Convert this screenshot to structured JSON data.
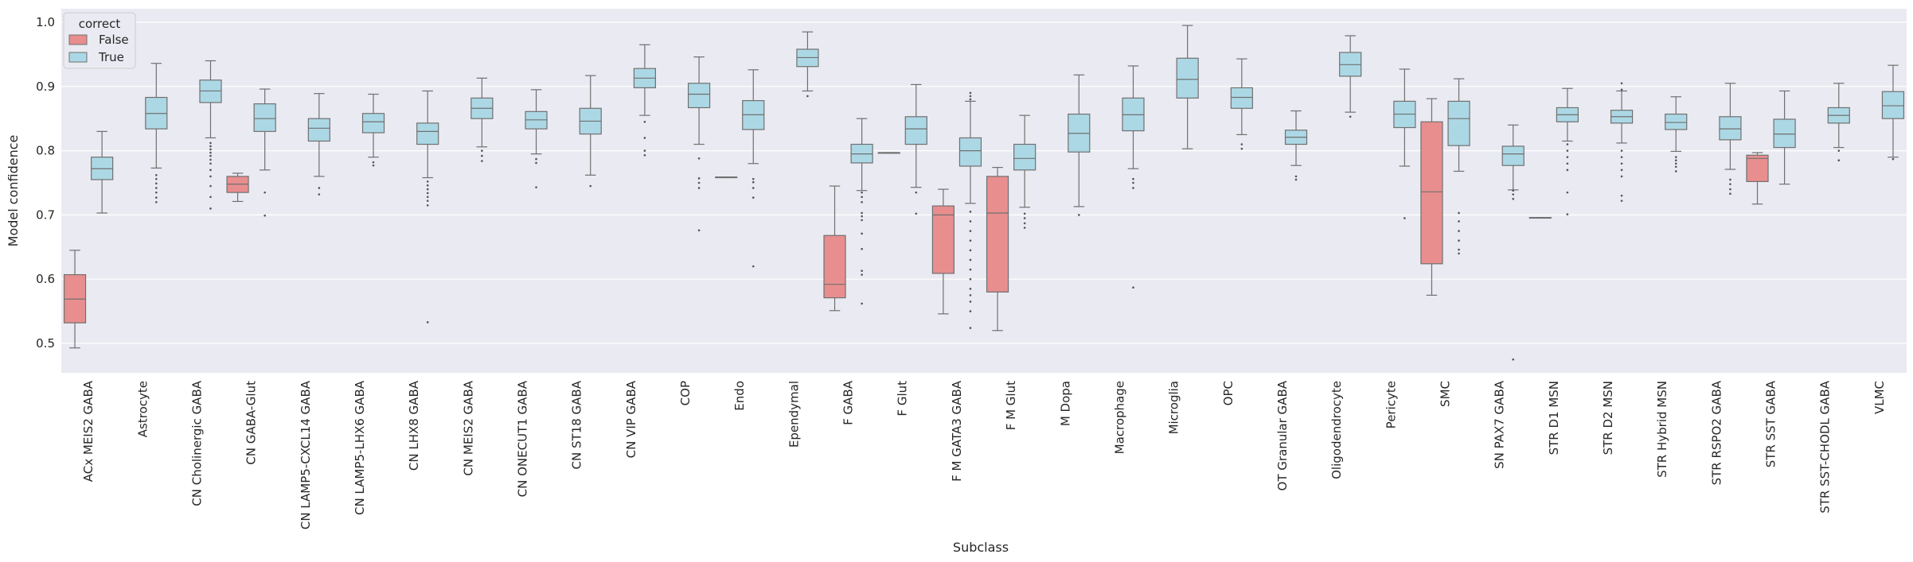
{
  "chart_data": {
    "type": "box",
    "xlabel": "Subclass",
    "ylabel": "Model confidence",
    "ylim": [
      0.45,
      1.02
    ],
    "yticks": [
      0.5,
      0.6,
      0.7,
      0.8,
      0.9,
      1.0
    ],
    "grid": true,
    "legend": {
      "title": "correct",
      "position": "top-left",
      "entries": [
        {
          "label": "False",
          "color": "#e88e8e"
        },
        {
          "label": "True",
          "color": "#acd8e5"
        }
      ]
    },
    "colors": {
      "False": "#e88e8e",
      "True": "#acd8e5",
      "background": "#eaeaf2",
      "grid": "#ffffff",
      "line": "#707070"
    },
    "categories": [
      "ACx MEIS2 GABA",
      "Astrocyte",
      "CN Cholinergic GABA",
      "CN GABA-Glut",
      "CN LAMP5-CXCL14 GABA",
      "CN LAMP5-LHX6 GABA",
      "CN LHX8 GABA",
      "CN MEIS2 GABA",
      "CN ONECUT1 GABA",
      "CN ST18 GABA",
      "CN VIP GABA",
      "COP",
      "Endo",
      "Ependymal",
      "F GABA",
      "F Glut",
      "F M GATA3 GABA",
      "F M Glut",
      "M Dopa",
      "Macrophage",
      "Microglia",
      "OPC",
      "OT Granular GABA",
      "Oligodendrocyte",
      "Pericyte",
      "SMC",
      "SN PAX7 GABA",
      "STR D1 MSN",
      "STR D2 MSN",
      "STR Hybrid MSN",
      "STR RSPO2 GABA",
      "STR SST GABA",
      "STR SST-CHODL GABA",
      "VLMC"
    ],
    "series": [
      {
        "name": "False",
        "boxes": [
          {
            "category": "ACx MEIS2 GABA",
            "whislo": 0.493,
            "q1": 0.532,
            "median": 0.569,
            "q3": 0.607,
            "whishi": 0.645,
            "fliers": []
          },
          {
            "category": "CN GABA-Glut",
            "whislo": 0.721,
            "q1": 0.735,
            "median": 0.748,
            "q3": 0.76,
            "whishi": 0.765,
            "fliers": []
          },
          {
            "category": "Endo",
            "whislo": 0.759,
            "q1": 0.759,
            "median": 0.759,
            "q3": 0.759,
            "whishi": 0.759,
            "fliers": []
          },
          {
            "category": "F GABA",
            "whislo": 0.551,
            "q1": 0.571,
            "median": 0.592,
            "q3": 0.668,
            "whishi": 0.745,
            "fliers": []
          },
          {
            "category": "F Glut",
            "whislo": 0.797,
            "q1": 0.797,
            "median": 0.797,
            "q3": 0.797,
            "whishi": 0.797,
            "fliers": []
          },
          {
            "category": "F M GATA3 GABA",
            "whislo": 0.546,
            "q1": 0.609,
            "median": 0.7,
            "q3": 0.714,
            "whishi": 0.74,
            "fliers": []
          },
          {
            "category": "F M Glut",
            "whislo": 0.52,
            "q1": 0.58,
            "median": 0.703,
            "q3": 0.76,
            "whishi": 0.774,
            "fliers": []
          },
          {
            "category": "SMC",
            "whislo": 0.575,
            "q1": 0.624,
            "median": 0.736,
            "q3": 0.845,
            "whishi": 0.881,
            "fliers": []
          },
          {
            "category": "STR D1 MSN",
            "whislo": 0.696,
            "q1": 0.696,
            "median": 0.696,
            "q3": 0.696,
            "whishi": 0.696,
            "fliers": []
          },
          {
            "category": "STR SST GABA",
            "whislo": 0.717,
            "q1": 0.752,
            "median": 0.788,
            "q3": 0.793,
            "whishi": 0.797,
            "fliers": []
          }
        ]
      },
      {
        "name": "True",
        "boxes": [
          {
            "category": "ACx MEIS2 GABA",
            "whislo": 0.703,
            "q1": 0.755,
            "median": 0.772,
            "q3": 0.79,
            "whishi": 0.83,
            "fliers": []
          },
          {
            "category": "Astrocyte",
            "whislo": 0.773,
            "q1": 0.834,
            "median": 0.858,
            "q3": 0.883,
            "whishi": 0.936,
            "fliers": [
              0.72,
              0.727,
              0.735,
              0.742,
              0.749,
              0.756,
              0.762
            ]
          },
          {
            "category": "CN Cholinergic GABA",
            "whislo": 0.82,
            "q1": 0.875,
            "median": 0.893,
            "q3": 0.91,
            "whishi": 0.94,
            "fliers": [
              0.71,
              0.728,
              0.745,
              0.76,
              0.77,
              0.78,
              0.786,
              0.792,
              0.797,
              0.802,
              0.807,
              0.812
            ]
          },
          {
            "category": "CN GABA-Glut",
            "whislo": 0.77,
            "q1": 0.83,
            "median": 0.85,
            "q3": 0.873,
            "whishi": 0.896,
            "fliers": [
              0.699,
              0.735
            ]
          },
          {
            "category": "CN LAMP5-CXCL14 GABA",
            "whislo": 0.76,
            "q1": 0.815,
            "median": 0.835,
            "q3": 0.85,
            "whishi": 0.889,
            "fliers": [
              0.732,
              0.742
            ]
          },
          {
            "category": "CN LAMP5-LHX6 GABA",
            "whislo": 0.79,
            "q1": 0.828,
            "median": 0.845,
            "q3": 0.858,
            "whishi": 0.888,
            "fliers": [
              0.777,
              0.782
            ]
          },
          {
            "category": "CN LHX8 GABA",
            "whislo": 0.758,
            "q1": 0.81,
            "median": 0.83,
            "q3": 0.843,
            "whishi": 0.893,
            "fliers": [
              0.533,
              0.715,
              0.722,
              0.728,
              0.734,
              0.74,
              0.746,
              0.752
            ]
          },
          {
            "category": "CN MEIS2 GABA",
            "whislo": 0.806,
            "q1": 0.85,
            "median": 0.866,
            "q3": 0.882,
            "whishi": 0.913,
            "fliers": [
              0.784,
              0.792,
              0.8
            ]
          },
          {
            "category": "CN ONECUT1 GABA",
            "whislo": 0.795,
            "q1": 0.834,
            "median": 0.848,
            "q3": 0.861,
            "whishi": 0.895,
            "fliers": [
              0.743,
              0.781,
              0.787
            ]
          },
          {
            "category": "CN ST18 GABA",
            "whislo": 0.762,
            "q1": 0.826,
            "median": 0.846,
            "q3": 0.866,
            "whishi": 0.917,
            "fliers": [
              0.745
            ]
          },
          {
            "category": "CN VIP GABA",
            "whislo": 0.855,
            "q1": 0.898,
            "median": 0.913,
            "q3": 0.928,
            "whishi": 0.965,
            "fliers": [
              0.793,
              0.8,
              0.82,
              0.845
            ]
          },
          {
            "category": "COP",
            "whislo": 0.81,
            "q1": 0.867,
            "median": 0.888,
            "q3": 0.905,
            "whishi": 0.946,
            "fliers": [
              0.676,
              0.742,
              0.75,
              0.757,
              0.788
            ]
          },
          {
            "category": "Endo",
            "whislo": 0.78,
            "q1": 0.833,
            "median": 0.856,
            "q3": 0.878,
            "whishi": 0.926,
            "fliers": [
              0.62,
              0.727,
              0.742,
              0.751,
              0.756
            ]
          },
          {
            "category": "Ependymal",
            "whislo": 0.893,
            "q1": 0.931,
            "median": 0.945,
            "q3": 0.958,
            "whishi": 0.985,
            "fliers": [
              0.885
            ]
          },
          {
            "category": "F GABA",
            "whislo": 0.738,
            "q1": 0.781,
            "median": 0.795,
            "q3": 0.81,
            "whishi": 0.85,
            "fliers": [
              0.562,
              0.607,
              0.613,
              0.647,
              0.671,
              0.692,
              0.698,
              0.703,
              0.72,
              0.728,
              0.735
            ]
          },
          {
            "category": "F Glut",
            "whislo": 0.743,
            "q1": 0.81,
            "median": 0.834,
            "q3": 0.853,
            "whishi": 0.903,
            "fliers": [
              0.702,
              0.735
            ]
          },
          {
            "category": "F M GATA3 GABA",
            "whislo": 0.718,
            "q1": 0.776,
            "median": 0.8,
            "q3": 0.82,
            "whishi": 0.877,
            "fliers": [
              0.524,
              0.55,
              0.565,
              0.575,
              0.585,
              0.6,
              0.615,
              0.63,
              0.645,
              0.66,
              0.675,
              0.69,
              0.705,
              0.88,
              0.885,
              0.89
            ]
          },
          {
            "category": "F M Glut",
            "whislo": 0.712,
            "q1": 0.77,
            "median": 0.788,
            "q3": 0.81,
            "whishi": 0.855,
            "fliers": [
              0.68,
              0.687,
              0.695,
              0.702
            ]
          },
          {
            "category": "M Dopa",
            "whislo": 0.713,
            "q1": 0.798,
            "median": 0.827,
            "q3": 0.857,
            "whishi": 0.918,
            "fliers": [
              0.7
            ]
          },
          {
            "category": "Macrophage",
            "whislo": 0.772,
            "q1": 0.831,
            "median": 0.856,
            "q3": 0.882,
            "whishi": 0.932,
            "fliers": [
              0.587,
              0.742,
              0.75,
              0.756
            ]
          },
          {
            "category": "Microglia",
            "whislo": 0.803,
            "q1": 0.882,
            "median": 0.911,
            "q3": 0.944,
            "whishi": 0.995,
            "fliers": []
          },
          {
            "category": "OPC",
            "whislo": 0.825,
            "q1": 0.866,
            "median": 0.883,
            "q3": 0.898,
            "whishi": 0.943,
            "fliers": [
              0.803,
              0.81
            ]
          },
          {
            "category": "OT Granular GABA",
            "whislo": 0.777,
            "q1": 0.81,
            "median": 0.821,
            "q3": 0.832,
            "whishi": 0.862,
            "fliers": [
              0.755,
              0.76
            ]
          },
          {
            "category": "Oligodendrocyte",
            "whislo": 0.86,
            "q1": 0.916,
            "median": 0.934,
            "q3": 0.953,
            "whishi": 0.979,
            "fliers": [
              0.853
            ]
          },
          {
            "category": "Pericyte",
            "whislo": 0.776,
            "q1": 0.836,
            "median": 0.857,
            "q3": 0.877,
            "whishi": 0.927,
            "fliers": [
              0.695
            ]
          },
          {
            "category": "SMC",
            "whislo": 0.768,
            "q1": 0.808,
            "median": 0.85,
            "q3": 0.877,
            "whishi": 0.912,
            "fliers": [
              0.64,
              0.646,
              0.66,
              0.675,
              0.69,
              0.703
            ]
          },
          {
            "category": "SN PAX7 GABA",
            "whislo": 0.739,
            "q1": 0.777,
            "median": 0.795,
            "q3": 0.807,
            "whishi": 0.84,
            "fliers": [
              0.475,
              0.725,
              0.732,
              0.738
            ]
          },
          {
            "category": "STR D1 MSN",
            "whislo": 0.815,
            "q1": 0.845,
            "median": 0.856,
            "q3": 0.867,
            "whishi": 0.897,
            "fliers": [
              0.701,
              0.735,
              0.77,
              0.78,
              0.79,
              0.8,
              0.81
            ]
          },
          {
            "category": "STR D2 MSN",
            "whislo": 0.812,
            "q1": 0.843,
            "median": 0.853,
            "q3": 0.863,
            "whishi": 0.893,
            "fliers": [
              0.722,
              0.73,
              0.76,
              0.77,
              0.78,
              0.79,
              0.8,
              0.895,
              0.905
            ]
          },
          {
            "category": "STR Hybrid MSN",
            "whislo": 0.799,
            "q1": 0.833,
            "median": 0.844,
            "q3": 0.857,
            "whishi": 0.884,
            "fliers": [
              0.768,
              0.775,
              0.78,
              0.785,
              0.79
            ]
          },
          {
            "category": "STR RSPO2 GABA",
            "whislo": 0.771,
            "q1": 0.817,
            "median": 0.834,
            "q3": 0.853,
            "whishi": 0.905,
            "fliers": [
              0.733,
              0.74,
              0.748,
              0.755
            ]
          },
          {
            "category": "STR SST GABA",
            "whislo": 0.748,
            "q1": 0.805,
            "median": 0.826,
            "q3": 0.849,
            "whishi": 0.893,
            "fliers": []
          },
          {
            "category": "STR SST-CHODL GABA",
            "whislo": 0.805,
            "q1": 0.843,
            "median": 0.855,
            "q3": 0.867,
            "whishi": 0.905,
            "fliers": [
              0.785,
              0.8
            ]
          },
          {
            "category": "VLMC",
            "whislo": 0.79,
            "q1": 0.85,
            "median": 0.87,
            "q3": 0.892,
            "whishi": 0.933,
            "fliers": [
              0.787
            ]
          }
        ]
      }
    ]
  }
}
